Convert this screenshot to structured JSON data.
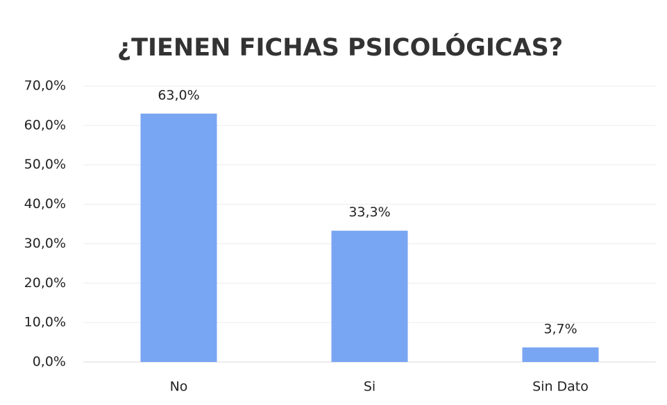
{
  "chart_data": {
    "type": "bar",
    "title": "¿TIENEN FICHAS PSICOLÓGICAS?",
    "categories": [
      "No",
      "Si",
      "Sin Dato"
    ],
    "values": [
      63.0,
      33.3,
      3.7
    ],
    "value_labels": [
      "63,0%",
      "33,3%",
      "3,7%"
    ],
    "color": "#79a6f2",
    "ylim": [
      0,
      70
    ],
    "yticks": [
      {
        "value": 0,
        "label": "0,0%"
      },
      {
        "value": 10,
        "label": "10,0%"
      },
      {
        "value": 20,
        "label": "20,0%"
      },
      {
        "value": 30,
        "label": "30,0%"
      },
      {
        "value": 40,
        "label": "40,0%"
      },
      {
        "value": 50,
        "label": "50,0%"
      },
      {
        "value": 60,
        "label": "60,0%"
      },
      {
        "value": 70,
        "label": "70,0%"
      }
    ],
    "grid": true
  }
}
